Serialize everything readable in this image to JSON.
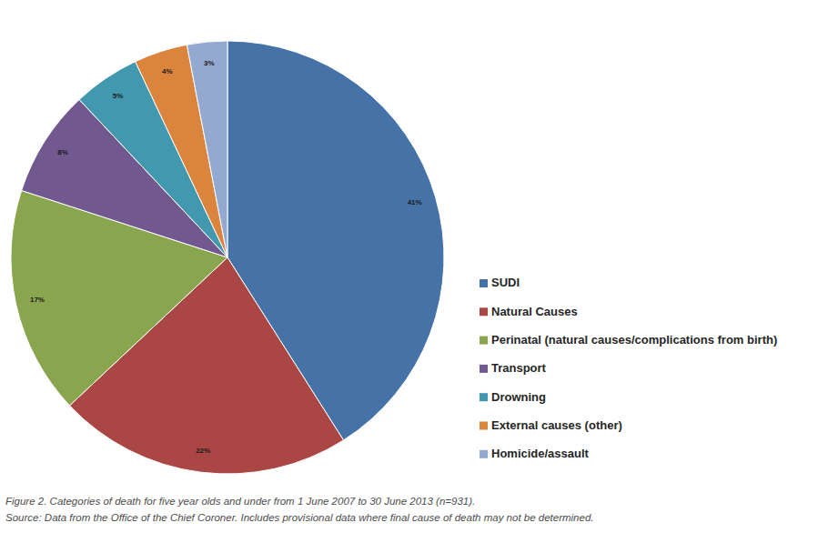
{
  "chart_data": {
    "type": "pie",
    "title": "Figure 2. Categories of death for five year olds and under from 1 June 2007 to 30 June 2013 (n=931).",
    "subtitle": "Source: Data from the Office of the Chief Coroner. Includes provisional data where final cause of death may not be determined.",
    "categories": [
      "SUDI",
      "Natural Causes",
      "Perinatal (natural causes/complications from birth)",
      "Transport",
      "Drowning",
      "External causes (other)",
      "Homicide/assault"
    ],
    "values": [
      41,
      22,
      17,
      8,
      5,
      4,
      3
    ],
    "value_labels": [
      "41%",
      "22%",
      "17%",
      "8%",
      "5%",
      "4%",
      "3%"
    ],
    "colors": [
      "#4572a7",
      "#aa4643",
      "#89a54e",
      "#71588f",
      "#4198af",
      "#db843d",
      "#93a9cf"
    ],
    "data_labels": true,
    "legend": "right"
  }
}
